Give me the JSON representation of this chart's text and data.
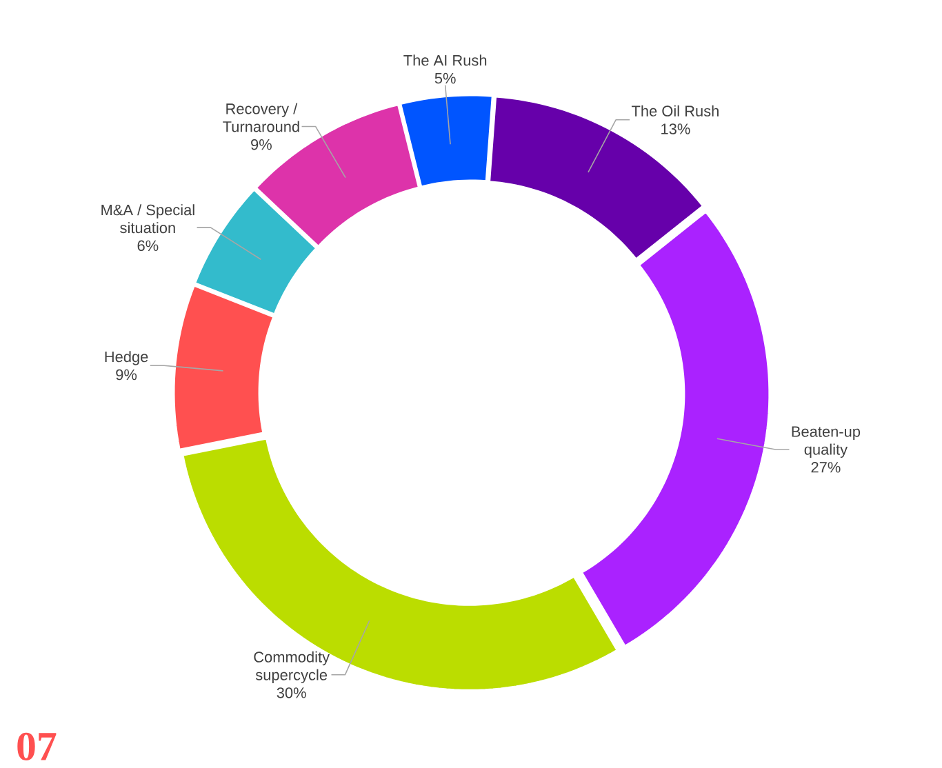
{
  "chart_data": {
    "type": "donut",
    "categories": [
      "The AI Rush",
      "The Oil Rush",
      "Beaten-up quality",
      "Commodity supercycle",
      "Hedge",
      "M&A / Special situation",
      "Recovery / Turnaround"
    ],
    "values": [
      5,
      13,
      27,
      30,
      9,
      6,
      9
    ],
    "value_labels": [
      "5%",
      "13%",
      "27%",
      "30%",
      "9%",
      "6%",
      "9%"
    ],
    "colors": [
      "#0055ff",
      "#6600aa",
      "#aa22ff",
      "#bbdd00",
      "#ff5050",
      "#33bbcc",
      "#dd33aa"
    ],
    "annotations": [
      "07"
    ]
  }
}
